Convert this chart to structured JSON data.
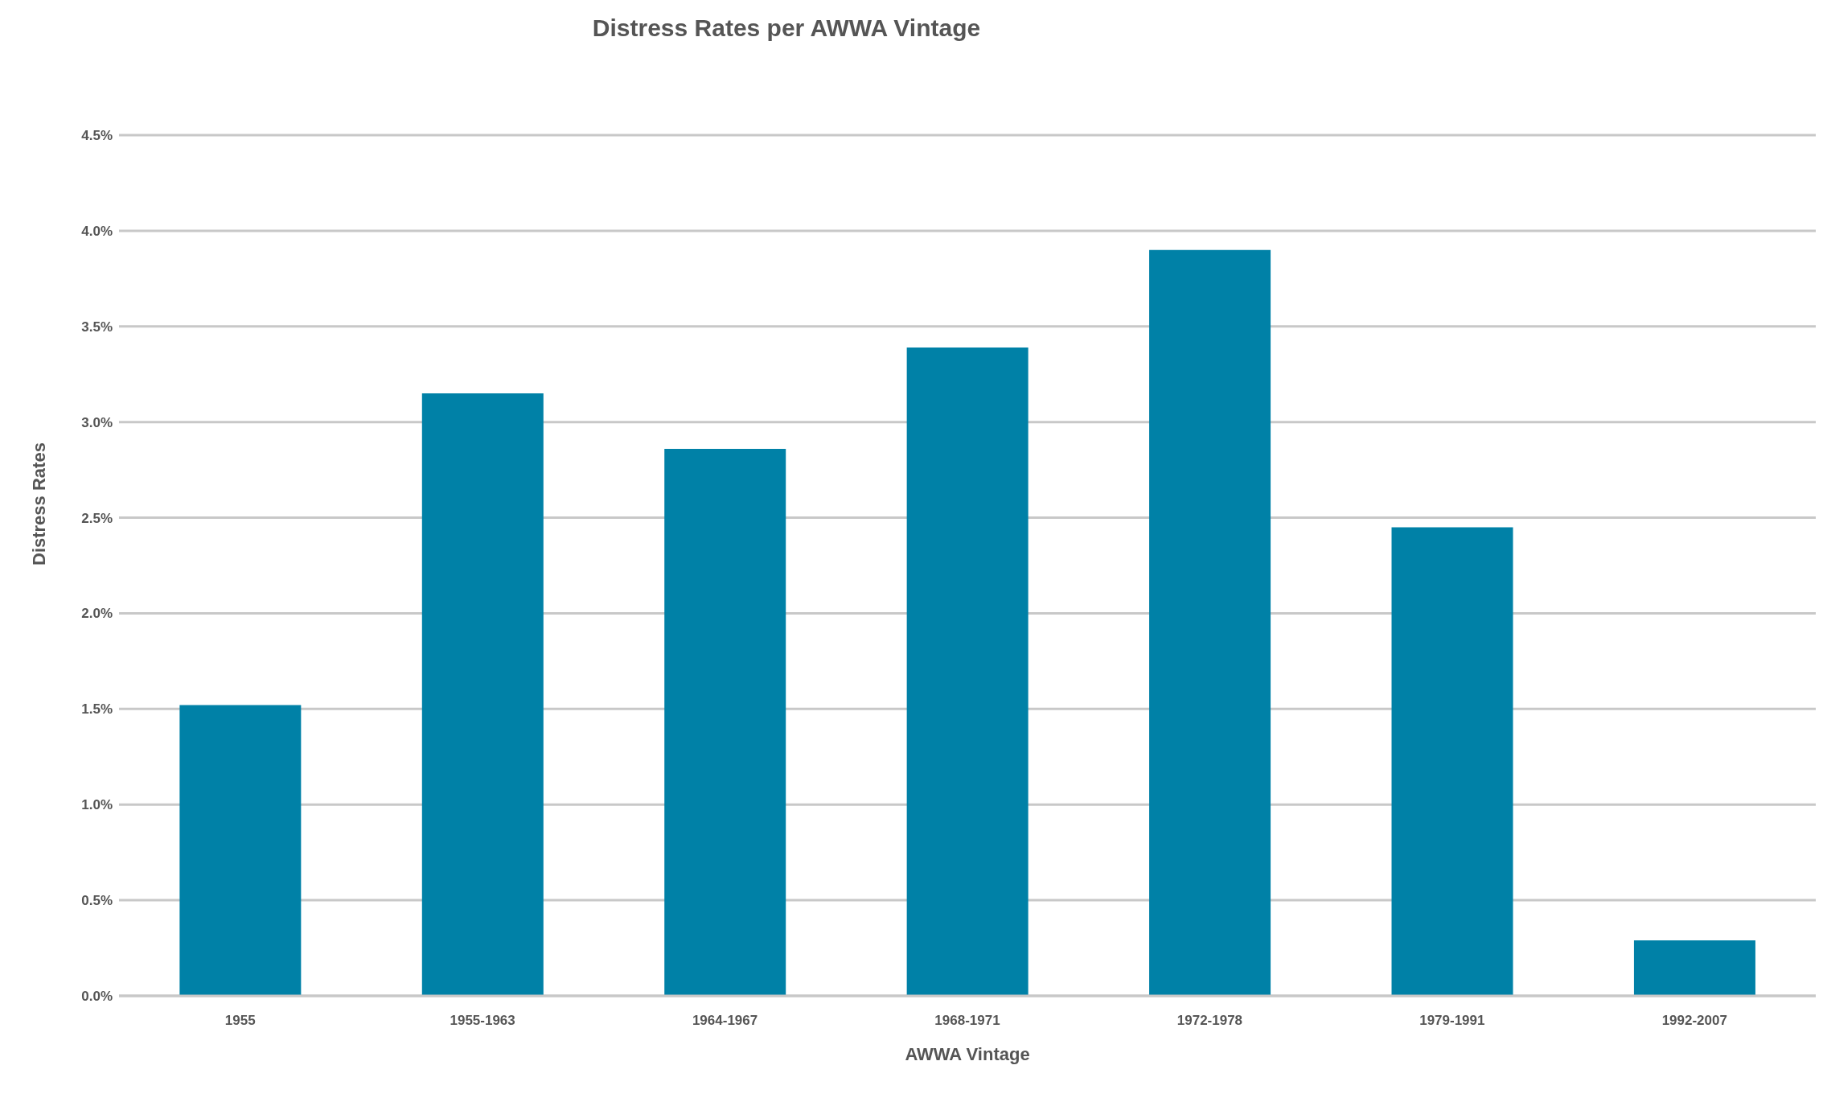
{
  "chart_data": {
    "type": "bar",
    "title": "Distress Rates per AWWA Vintage",
    "xlabel": "AWWA Vintage",
    "ylabel": "Distress Rates",
    "categories": [
      "1955",
      "1955-1963",
      "1964-1967",
      "1968-1971",
      "1972-1978",
      "1979-1991",
      "1992-2007"
    ],
    "values": [
      1.52,
      3.15,
      2.86,
      3.39,
      3.9,
      2.45,
      0.29
    ],
    "color": "#0081a7",
    "ylim": [
      0,
      4.5
    ],
    "yticks": [
      {
        "value": 0,
        "label": "0.0%"
      },
      {
        "value": 0.5,
        "label": "0.5%"
      },
      {
        "value": 1,
        "label": "1.0%"
      },
      {
        "value": 1.5,
        "label": "1.5%"
      },
      {
        "value": 2,
        "label": "2.0%"
      },
      {
        "value": 2.5,
        "label": "2.5%"
      },
      {
        "value": 3,
        "label": "3.0%"
      },
      {
        "value": 3.5,
        "label": "3.5%"
      },
      {
        "value": 4,
        "label": "4.0%"
      },
      {
        "value": 4.5,
        "label": "4.5%"
      }
    ],
    "grid": "y",
    "legend": false
  }
}
